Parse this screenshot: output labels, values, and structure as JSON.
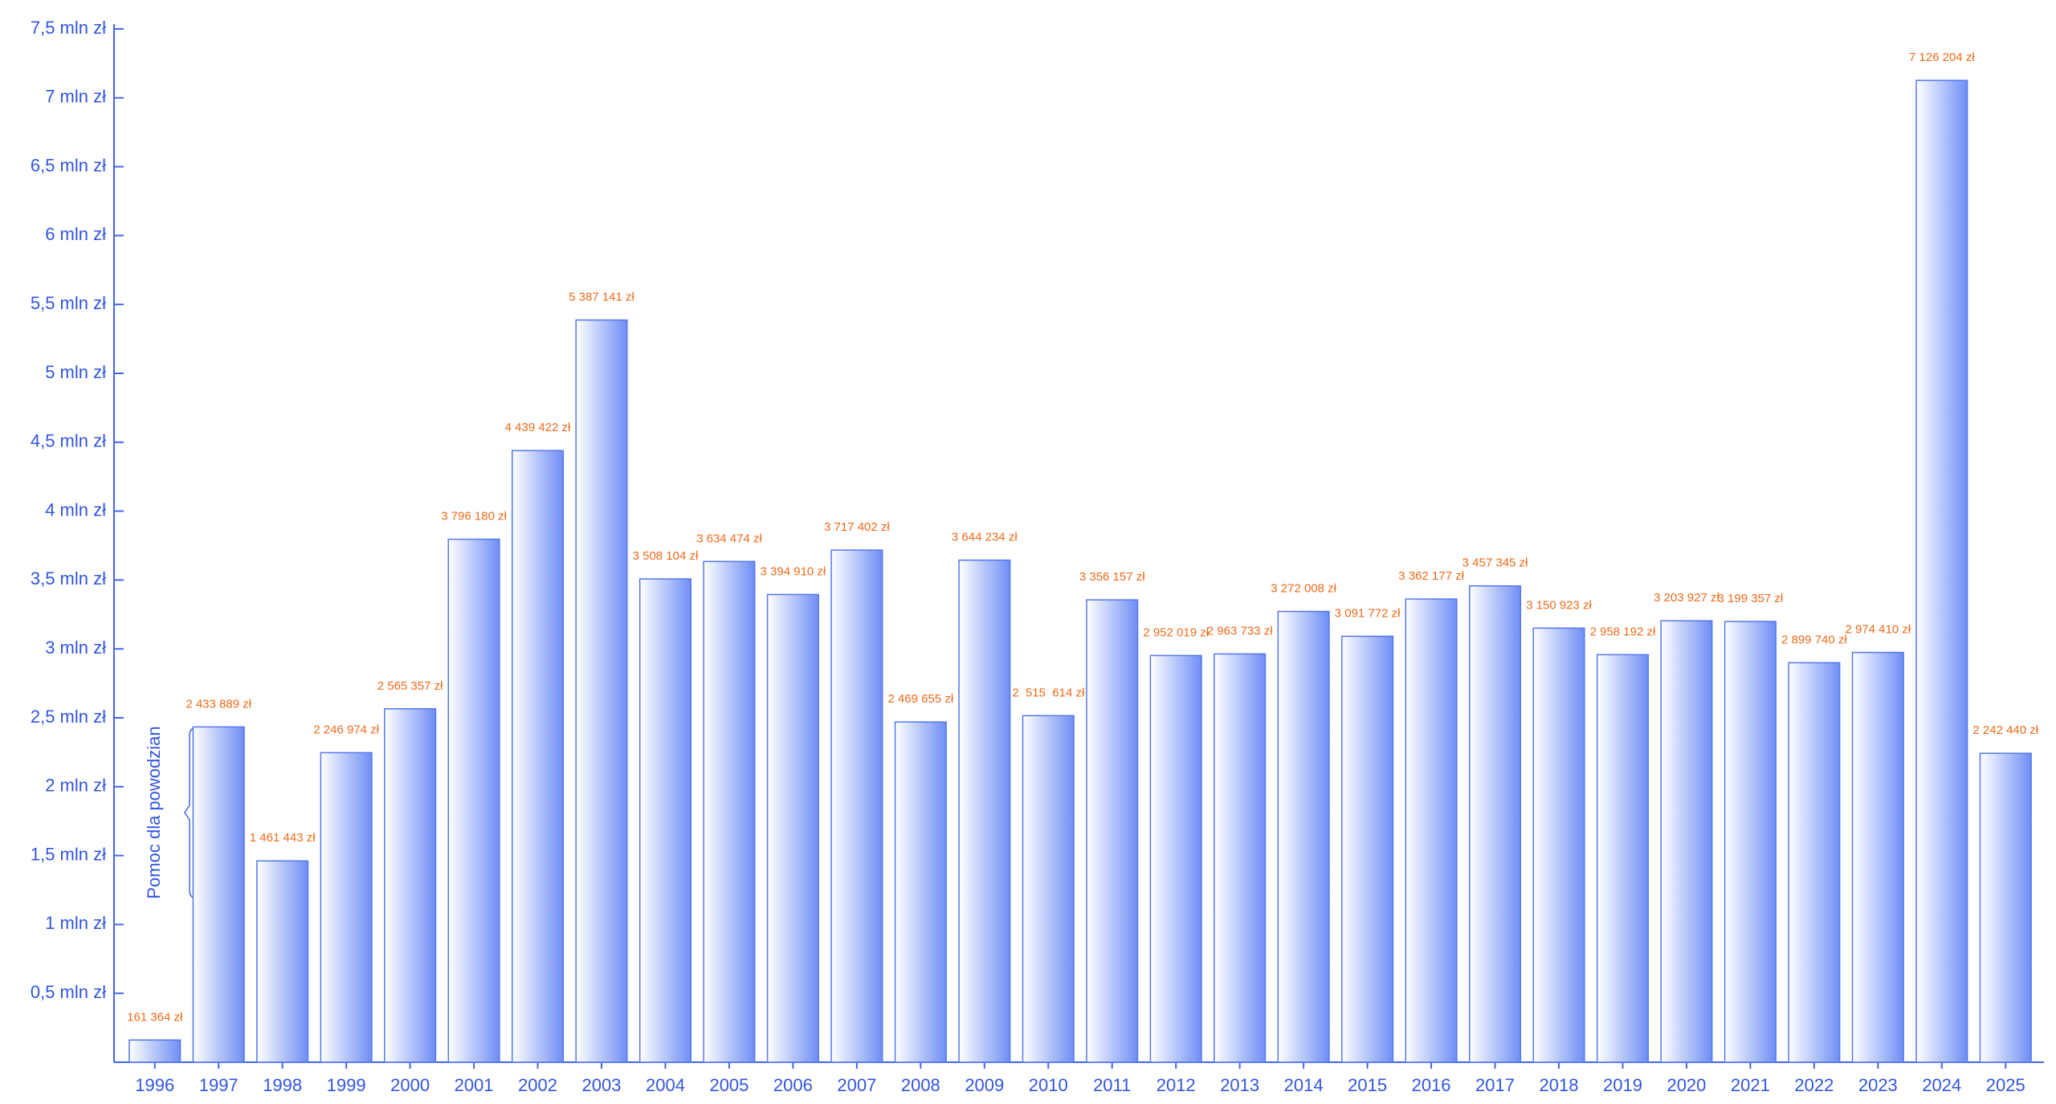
{
  "chart_data": {
    "type": "bar",
    "categories": [
      "1996",
      "1997",
      "1998",
      "1999",
      "2000",
      "2001",
      "2002",
      "2003",
      "2004",
      "2005",
      "2006",
      "2007",
      "2008",
      "2009",
      "2010",
      "2011",
      "2012",
      "2013",
      "2014",
      "2015",
      "2016",
      "2017",
      "2018",
      "2019",
      "2020",
      "2021",
      "2022",
      "2023",
      "2024",
      "2025"
    ],
    "values": [
      161364,
      2433889,
      1461443,
      2246974,
      2565357,
      3796180,
      4439422,
      5387141,
      3508104,
      3634474,
      3394910,
      3717402,
      2469655,
      3644234,
      2515614,
      3356157,
      2952019,
      2963733,
      3272008,
      3091772,
      3362177,
      3457345,
      3150923,
      2958192,
      3203927,
      3199357,
      2899740,
      2974410,
      7126204,
      2242440
    ],
    "value_labels": [
      "161 364 zł",
      "2 433 889 zł",
      "1 461 443 zł",
      "2 246 974 zł",
      "2 565 357 zł",
      "3 796 180 zł",
      "4 439 422 zł",
      "5 387 141 zł",
      "3 508 104 zł",
      "3 634 474 zł",
      "3 394 910 zł",
      "3 717 402 zł",
      "2 469 655 zł",
      "3 644 234 zł",
      "2  515  614 zł",
      "3 356 157 zł",
      "2 952 019 zł",
      "2 963 733 zł",
      "3 272 008 zł",
      "3 091 772 zł",
      "3 362 177 zł",
      "3 457 345 zł",
      "3 150 923 zł",
      "2 958 192 zł",
      "3 203 927 zł",
      "3 199 357 zł",
      "2 899 740 zł",
      "2 974 410 zł",
      "7 126 204 zł",
      "2 242 440 zł"
    ],
    "color": "#5577ee",
    "ylim": [
      0,
      7500000
    ],
    "yticks": [
      {
        "value": 500000,
        "label": "0,5 mln zł"
      },
      {
        "value": 1000000,
        "label": "1 mln zł"
      },
      {
        "value": 1500000,
        "label": "1,5 mln zł"
      },
      {
        "value": 2000000,
        "label": "2 mln zł"
      },
      {
        "value": 2500000,
        "label": "2,5 mln zł"
      },
      {
        "value": 3000000,
        "label": "3 mln zł"
      },
      {
        "value": 3500000,
        "label": "3,5 mln zł"
      },
      {
        "value": 4000000,
        "label": "4 mln zł"
      },
      {
        "value": 4500000,
        "label": "4,5 mln zł"
      },
      {
        "value": 5000000,
        "label": "5 mln zł"
      },
      {
        "value": 5500000,
        "label": "5,5 mln zł"
      },
      {
        "value": 6000000,
        "label": "6 mln zł"
      },
      {
        "value": 6500000,
        "label": "6,5 mln zł"
      },
      {
        "value": 7000000,
        "label": "7 mln zł"
      },
      {
        "value": 7500000,
        "label": "7,5 mln zł"
      }
    ],
    "annotation": "Pomoc dla powodzian"
  }
}
